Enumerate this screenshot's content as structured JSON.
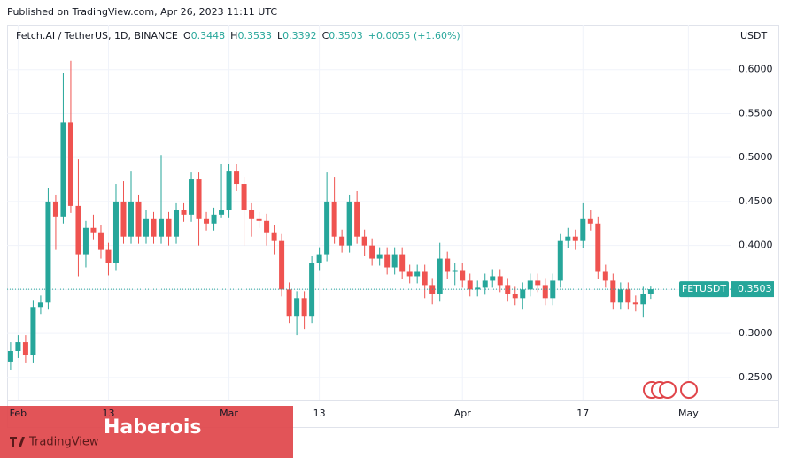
{
  "published": "Published on TradingView.com, Apr 26, 2023 11:11 UTC",
  "chart_data": {
    "type": "candlestick",
    "title": "Fetch.AI / TetherUS, 1D, BINANCE",
    "ohlc_header": [
      {
        "label": "O",
        "value": 0.3448
      },
      {
        "label": "H",
        "value": 0.3533
      },
      {
        "label": "L",
        "value": 0.3392
      },
      {
        "label": "C",
        "value": 0.3503
      }
    ],
    "change": "+0.0055 (+1.60%)",
    "currency": "USDT",
    "up_color": "#26a69a",
    "down_color": "#ef5350",
    "open": [
      0.268,
      0.28,
      0.29,
      0.275,
      0.33,
      0.335,
      0.45,
      0.433,
      0.54,
      0.445,
      0.39,
      0.42,
      0.415,
      0.395,
      0.38,
      0.45,
      0.41,
      0.45,
      0.41,
      0.43,
      0.41,
      0.43,
      0.41,
      0.44,
      0.435,
      0.475,
      0.43,
      0.425,
      0.435,
      0.44,
      0.485,
      0.47,
      0.44,
      0.43,
      0.428,
      0.415,
      0.405,
      0.35,
      0.32,
      0.34,
      0.32,
      0.38,
      0.39,
      0.45,
      0.41,
      0.4,
      0.45,
      0.41,
      0.4,
      0.385,
      0.39,
      0.375,
      0.39,
      0.37,
      0.365,
      0.37,
      0.355,
      0.345,
      0.385,
      0.37,
      0.372,
      0.36,
      0.35,
      0.352,
      0.36,
      0.365,
      0.355,
      0.345,
      0.34,
      0.35,
      0.36,
      0.355,
      0.34,
      0.36,
      0.405,
      0.41,
      0.405,
      0.43,
      0.425,
      0.37,
      0.36,
      0.335,
      0.35,
      0.335,
      0.333,
      0.3448
    ],
    "high": [
      0.29,
      0.298,
      0.298,
      0.338,
      0.343,
      0.465,
      0.458,
      0.596,
      0.61,
      0.498,
      0.428,
      0.435,
      0.423,
      0.403,
      0.47,
      0.473,
      0.485,
      0.458,
      0.44,
      0.438,
      0.503,
      0.438,
      0.448,
      0.448,
      0.483,
      0.483,
      0.438,
      0.443,
      0.493,
      0.493,
      0.493,
      0.478,
      0.448,
      0.438,
      0.436,
      0.423,
      0.413,
      0.358,
      0.348,
      0.348,
      0.388,
      0.398,
      0.483,
      0.478,
      0.418,
      0.458,
      0.462,
      0.418,
      0.408,
      0.398,
      0.398,
      0.398,
      0.398,
      0.378,
      0.378,
      0.378,
      0.363,
      0.403,
      0.393,
      0.38,
      0.38,
      0.368,
      0.36,
      0.368,
      0.373,
      0.373,
      0.363,
      0.353,
      0.358,
      0.368,
      0.368,
      0.363,
      0.368,
      0.413,
      0.42,
      0.418,
      0.448,
      0.44,
      0.433,
      0.378,
      0.368,
      0.358,
      0.358,
      0.343,
      0.353,
      0.3533
    ],
    "low": [
      0.258,
      0.272,
      0.267,
      0.267,
      0.322,
      0.327,
      0.395,
      0.425,
      0.437,
      0.365,
      0.375,
      0.407,
      0.385,
      0.366,
      0.372,
      0.402,
      0.402,
      0.402,
      0.402,
      0.402,
      0.402,
      0.4,
      0.402,
      0.427,
      0.427,
      0.4,
      0.417,
      0.417,
      0.432,
      0.432,
      0.462,
      0.4,
      0.41,
      0.42,
      0.4,
      0.39,
      0.342,
      0.312,
      0.298,
      0.305,
      0.312,
      0.372,
      0.382,
      0.402,
      0.392,
      0.392,
      0.402,
      0.388,
      0.377,
      0.377,
      0.367,
      0.367,
      0.362,
      0.357,
      0.357,
      0.34,
      0.333,
      0.337,
      0.362,
      0.355,
      0.352,
      0.342,
      0.342,
      0.344,
      0.352,
      0.347,
      0.337,
      0.332,
      0.327,
      0.342,
      0.347,
      0.332,
      0.332,
      0.352,
      0.397,
      0.395,
      0.397,
      0.417,
      0.362,
      0.352,
      0.327,
      0.327,
      0.327,
      0.325,
      0.318,
      0.3392
    ],
    "close": [
      0.28,
      0.29,
      0.275,
      0.33,
      0.335,
      0.45,
      0.433,
      0.54,
      0.445,
      0.39,
      0.42,
      0.415,
      0.395,
      0.38,
      0.45,
      0.41,
      0.45,
      0.41,
      0.43,
      0.41,
      0.43,
      0.41,
      0.44,
      0.435,
      0.475,
      0.43,
      0.425,
      0.435,
      0.44,
      0.485,
      0.47,
      0.44,
      0.43,
      0.428,
      0.415,
      0.405,
      0.35,
      0.32,
      0.34,
      0.32,
      0.38,
      0.39,
      0.45,
      0.41,
      0.4,
      0.45,
      0.41,
      0.4,
      0.385,
      0.39,
      0.375,
      0.39,
      0.37,
      0.365,
      0.37,
      0.355,
      0.345,
      0.385,
      0.37,
      0.372,
      0.36,
      0.35,
      0.352,
      0.36,
      0.365,
      0.355,
      0.345,
      0.34,
      0.35,
      0.36,
      0.355,
      0.34,
      0.36,
      0.405,
      0.41,
      0.405,
      0.43,
      0.425,
      0.37,
      0.36,
      0.335,
      0.35,
      0.335,
      0.333,
      0.3448,
      0.3503
    ],
    "xlim": [
      -1.4,
      95.6
    ],
    "xticks": [
      {
        "value": 1,
        "label": "Feb"
      },
      {
        "value": 13,
        "label": "13"
      },
      {
        "value": 29,
        "label": "Mar"
      },
      {
        "value": 41,
        "label": "13"
      },
      {
        "value": 60,
        "label": "Apr"
      },
      {
        "value": 76,
        "label": "17"
      },
      {
        "value": 90,
        "label": "May"
      }
    ],
    "ylim": [
      0.2247,
      0.651
    ],
    "yticks": [
      {
        "value": 0.25,
        "label": "0.2500"
      },
      {
        "value": 0.3,
        "label": "0.3000"
      },
      {
        "value": 0.35,
        "label": "0.3500"
      },
      {
        "value": 0.4,
        "label": "0.4000"
      },
      {
        "value": 0.45,
        "label": "0.4500"
      },
      {
        "value": 0.5,
        "label": "0.5000"
      },
      {
        "value": 0.55,
        "label": "0.5500"
      },
      {
        "value": 0.6,
        "label": "0.6000"
      }
    ],
    "grid": true,
    "last_price": {
      "symbol": "FETUSDT",
      "value": 0.3503
    }
  },
  "watermark": {
    "brand": "Haberois",
    "logo": "TradingView"
  }
}
